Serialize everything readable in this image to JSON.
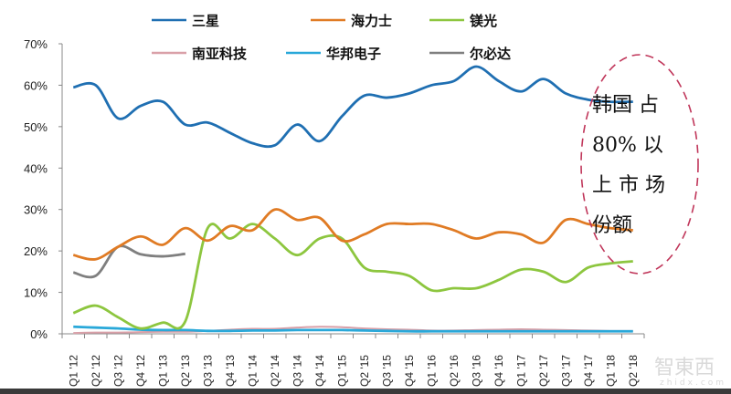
{
  "chart_data": {
    "type": "line",
    "title": "",
    "xlabel": "",
    "ylabel": "",
    "ylim": [
      0,
      70
    ],
    "yticks": [
      "0%",
      "10%",
      "20%",
      "30%",
      "40%",
      "50%",
      "60%",
      "70%"
    ],
    "grid": false,
    "legend_position": "top",
    "categories": [
      "Q1 '12",
      "Q2 '12",
      "Q3 '12",
      "Q4 '12",
      "Q1 '13",
      "Q2 '13",
      "Q3 '13",
      "Q4 '13",
      "Q1 '14",
      "Q2 '14",
      "Q3 '14",
      "Q4 '14",
      "Q1 '15",
      "Q2 '15",
      "Q3 '15",
      "Q4 '15",
      "Q1 '16",
      "Q2 '16",
      "Q3 '16",
      "Q4 '16",
      "Q1 '17",
      "Q2 '17",
      "Q3 '17",
      "Q4 '17",
      "Q1 '18",
      "Q2 '18"
    ],
    "series": [
      {
        "name": "三星",
        "color": "#1f6fb2",
        "values": [
          59.5,
          60,
          52,
          55,
          56,
          50.5,
          51,
          48.5,
          46,
          45.5,
          50.5,
          46.5,
          52.5,
          57.5,
          57,
          58,
          60,
          61,
          64.5,
          61,
          58.5,
          61.5,
          58,
          56.5,
          56,
          56
        ]
      },
      {
        "name": "海力士",
        "color": "#e07b24",
        "values": [
          19,
          18,
          21,
          23.5,
          21.5,
          25.5,
          22.5,
          26,
          25,
          30,
          27.5,
          28,
          22.5,
          24,
          26.5,
          26.5,
          26.5,
          25,
          23,
          24.5,
          24,
          22,
          27.5,
          26.5,
          25.5,
          25
        ]
      },
      {
        "name": "镁光",
        "color": "#8dc63f",
        "values": [
          5,
          6.8,
          4,
          1.3,
          2.7,
          3,
          25.5,
          23,
          26.5,
          23,
          19,
          23,
          23,
          16,
          15,
          14,
          10.5,
          11,
          11,
          13,
          15.5,
          15,
          12.5,
          16,
          17,
          17.5
        ]
      },
      {
        "name": "南亚科技",
        "color": "#d9a0a8",
        "values": [
          0.2,
          0.3,
          0.3,
          0.4,
          0.5,
          0.5,
          0.7,
          1,
          1.2,
          1.2,
          1.5,
          1.7,
          1.6,
          1.3,
          1.1,
          1,
          0.8,
          0.8,
          0.9,
          1,
          1.1,
          1,
          0.9,
          0.8,
          0.7,
          0.7
        ]
      },
      {
        "name": "华邦电子",
        "color": "#29a8d9",
        "values": [
          1.7,
          1.5,
          1.3,
          1,
          0.9,
          0.9,
          0.7,
          0.7,
          0.8,
          0.8,
          0.9,
          0.9,
          0.9,
          0.8,
          0.7,
          0.6,
          0.6,
          0.6,
          0.6,
          0.6,
          0.6,
          0.6,
          0.6,
          0.6,
          0.6,
          0.6
        ]
      },
      {
        "name": "尔必达",
        "color": "#7f7f7f",
        "values": [
          14.8,
          14,
          21,
          19.2,
          18.7,
          19.3,
          null,
          null,
          null,
          null,
          null,
          null,
          null,
          null,
          null,
          null,
          null,
          null,
          null,
          null,
          null,
          null,
          null,
          null,
          null,
          null
        ]
      }
    ],
    "annotations": [
      {
        "text": "韩国占80%以上市场份额",
        "shape": "dashed-ellipse",
        "color": "#c0365a",
        "position": "right"
      }
    ]
  },
  "legend": {
    "row1": [
      "三星",
      "海力士",
      "镁光"
    ],
    "row2": [
      "南亚科技",
      "华邦电子",
      "尔必达"
    ]
  },
  "annotation": {
    "line1": "韩国 占",
    "line2": "80% 以",
    "line3": "上 市 场",
    "line4": "份额"
  },
  "watermark": {
    "text": "智東西",
    "sub": "zhidx.com"
  }
}
